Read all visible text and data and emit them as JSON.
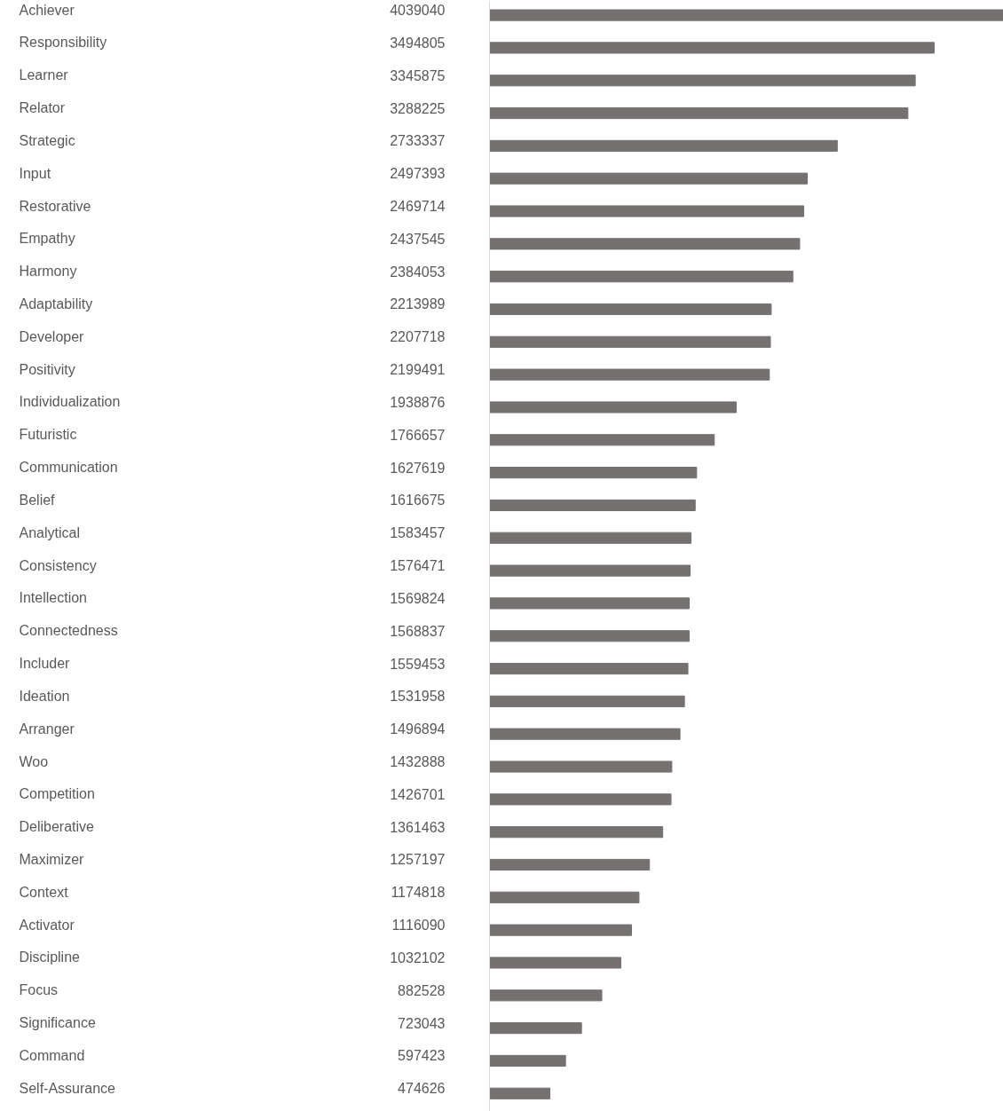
{
  "chart_data": {
    "type": "bar",
    "orientation": "horizontal",
    "data_labels": true,
    "grid": false,
    "tick_labels": false,
    "color": "#767171",
    "categories": [
      "Achiever",
      "Responsibility",
      "Learner",
      "Relator",
      "Strategic",
      "Input",
      "Restorative",
      "Empathy",
      "Harmony",
      "Adaptability",
      "Developer",
      "Positivity",
      "Individualization",
      "Futuristic",
      "Communication",
      "Belief",
      "Analytical",
      "Consistency",
      "Intellection",
      "Connectedness",
      "Includer",
      "Ideation",
      "Arranger",
      "Woo",
      "Competition",
      "Deliberative",
      "Maximizer",
      "Context",
      "Activator",
      "Discipline",
      "Focus",
      "Significance",
      "Command",
      "Self-Assurance"
    ],
    "values": [
      4039040,
      3494805,
      3345875,
      3288225,
      2733337,
      2497393,
      2469714,
      2437545,
      2384053,
      2213989,
      2207718,
      2199491,
      1938876,
      1766657,
      1627619,
      1616675,
      1583457,
      1576471,
      1569824,
      1568837,
      1559453,
      1531958,
      1496894,
      1432888,
      1426701,
      1361463,
      1257197,
      1174818,
      1116090,
      1032102,
      882528,
      723043,
      597423,
      474626
    ]
  }
}
